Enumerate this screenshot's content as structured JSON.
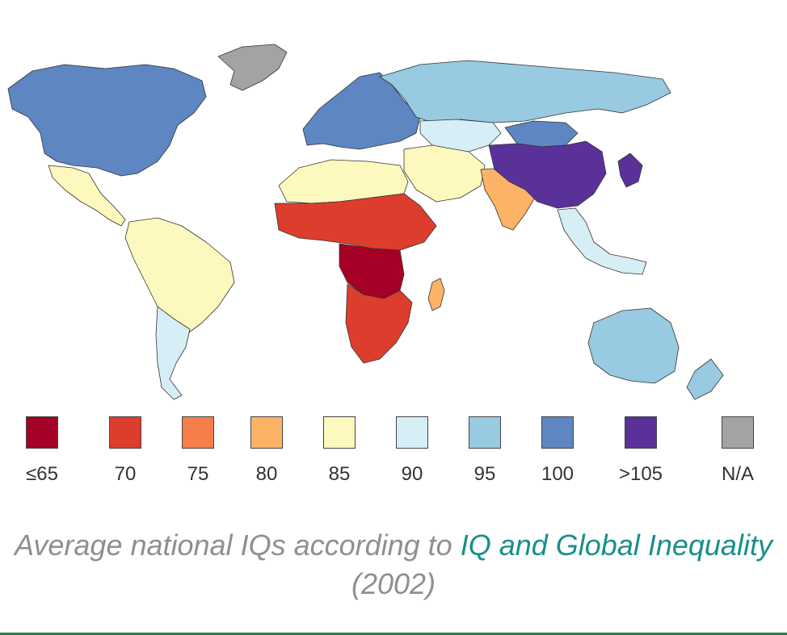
{
  "legend": {
    "items": [
      {
        "label": "≤65",
        "color": "#a50026"
      },
      {
        "label": "70",
        "color": "#dd3d2d"
      },
      {
        "label": "75",
        "color": "#f67e4b"
      },
      {
        "label": "80",
        "color": "#fdb366"
      },
      {
        "label": "85",
        "color": "#fdf8be"
      },
      {
        "label": "90",
        "color": "#d6eef5"
      },
      {
        "label": "95",
        "color": "#98cae1"
      },
      {
        "label": "100",
        "color": "#5d86c2"
      },
      {
        "label": ">105",
        "color": "#5a3199"
      },
      {
        "label": "N/A",
        "color": "#a3a3a3"
      }
    ]
  },
  "caption": {
    "prefix": "Average national IQs according to ",
    "link": "IQ and Global Inequality",
    "suffix": " (2002)"
  },
  "map": {
    "regions": [
      {
        "name": "north-america",
        "level": "100"
      },
      {
        "name": "greenland",
        "level": "N/A"
      },
      {
        "name": "central-america",
        "level": "85"
      },
      {
        "name": "south-america",
        "level": "85"
      },
      {
        "name": "southern-cone",
        "level": "90"
      },
      {
        "name": "europe",
        "level": "100"
      },
      {
        "name": "russia",
        "level": "95"
      },
      {
        "name": "central-asia",
        "level": "90"
      },
      {
        "name": "middle-east",
        "level": "85"
      },
      {
        "name": "north-africa",
        "level": "85"
      },
      {
        "name": "sahel",
        "level": "70"
      },
      {
        "name": "central-africa",
        "level": "≤65"
      },
      {
        "name": "southern-africa",
        "level": "70"
      },
      {
        "name": "south-asia",
        "level": "80"
      },
      {
        "name": "east-asia",
        "level": ">105"
      },
      {
        "name": "mongolia",
        "level": "100"
      },
      {
        "name": "southeast-asia",
        "level": "90"
      },
      {
        "name": "oceania",
        "level": "95"
      },
      {
        "name": "madagascar",
        "level": "80"
      }
    ]
  }
}
